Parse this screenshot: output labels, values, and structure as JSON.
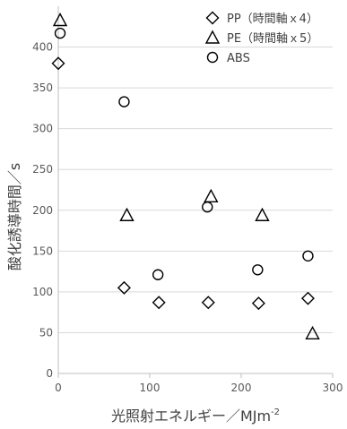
{
  "chart_data": {
    "type": "scatter",
    "title": "",
    "xlabel": "光照射エネルギー／MJm",
    "xlabel_sup": "-2",
    "ylabel": "酸化誘導時間／s",
    "xlim": [
      0,
      300
    ],
    "ylim": [
      0,
      450
    ],
    "x_ticks": [
      "0",
      "100",
      "200",
      "300"
    ],
    "y_ticks": [
      "0",
      "50",
      "100",
      "150",
      "200",
      "250",
      "300",
      "350",
      "400"
    ],
    "grid": "horizontal",
    "legend_position": "top-right",
    "series": [
      {
        "name": "PP（時間軸ｘ4）",
        "marker": "diamond",
        "points": [
          {
            "x": 0,
            "y": 380
          },
          {
            "x": 72,
            "y": 105
          },
          {
            "x": 110,
            "y": 87
          },
          {
            "x": 164,
            "y": 87
          },
          {
            "x": 219,
            "y": 86
          },
          {
            "x": 273,
            "y": 92
          }
        ]
      },
      {
        "name": "PE（時間軸ｘ5）",
        "marker": "triangle",
        "points": [
          {
            "x": 2,
            "y": 433
          },
          {
            "x": 75,
            "y": 194
          },
          {
            "x": 167,
            "y": 217
          },
          {
            "x": 223,
            "y": 194
          },
          {
            "x": 278,
            "y": 49
          }
        ]
      },
      {
        "name": "ABS",
        "marker": "circle",
        "points": [
          {
            "x": 2,
            "y": 417
          },
          {
            "x": 72,
            "y": 333
          },
          {
            "x": 109,
            "y": 121
          },
          {
            "x": 163,
            "y": 204
          },
          {
            "x": 218,
            "y": 127
          },
          {
            "x": 273,
            "y": 144
          }
        ]
      }
    ]
  },
  "colors": {
    "axis": "#bfbfbf",
    "grid": "#d9d9d9",
    "marker": "#000000",
    "text": "#595959"
  }
}
